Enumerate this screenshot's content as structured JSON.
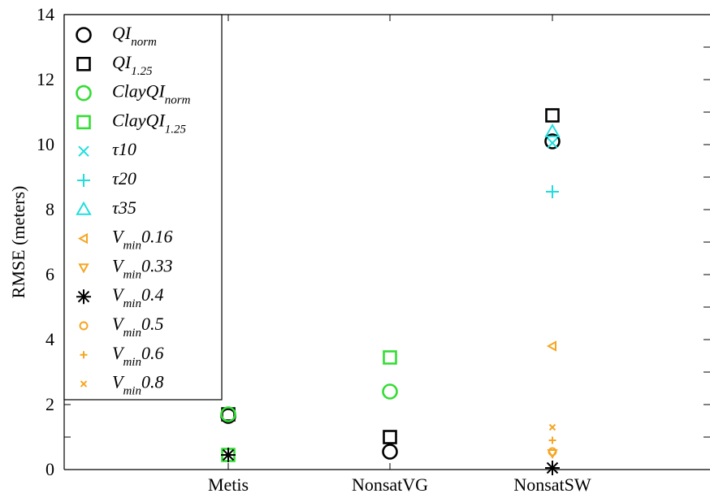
{
  "chart_data": {
    "type": "scatter",
    "ylabel": "RMSE (meters)",
    "xlabel": "",
    "title": "",
    "categories": [
      "Metis",
      "NonsatVG",
      "NonsatSW"
    ],
    "ylim": [
      0,
      14
    ],
    "yticks": [
      0,
      2,
      4,
      6,
      8,
      10,
      12,
      14
    ],
    "grid": false,
    "legend_position": "top-left",
    "series": [
      {
        "name": "QI_norm",
        "label_main": "QI",
        "label_sub": "norm",
        "label_tail": "",
        "marker": "circle-lg",
        "color": "#000000",
        "values": [
          1.65,
          0.55,
          10.1
        ]
      },
      {
        "name": "QI_1.25",
        "label_main": "QI",
        "label_sub": "1.25",
        "label_tail": "",
        "marker": "square-lg",
        "color": "#000000",
        "values": [
          1.7,
          1.0,
          10.9
        ]
      },
      {
        "name": "ClayQI_norm",
        "label_main": "ClayQI",
        "label_sub": "norm",
        "label_tail": "",
        "marker": "circle-lg",
        "color": "#33dd33",
        "values": [
          1.7,
          2.4,
          null
        ]
      },
      {
        "name": "ClayQI_1.25",
        "label_main": "ClayQI",
        "label_sub": "1.25",
        "label_tail": "",
        "marker": "square-lg",
        "color": "#33dd33",
        "values": [
          0.45,
          3.45,
          null
        ]
      },
      {
        "name": "τ10",
        "label_main": "τ10",
        "label_sub": "",
        "label_tail": "",
        "marker": "x",
        "color": "#22dddd",
        "values": [
          null,
          null,
          10.05
        ]
      },
      {
        "name": "τ20",
        "label_main": "τ20",
        "label_sub": "",
        "label_tail": "",
        "marker": "plus",
        "color": "#22dddd",
        "values": [
          null,
          null,
          8.55
        ]
      },
      {
        "name": "τ35",
        "label_main": "τ35",
        "label_sub": "",
        "label_tail": "",
        "marker": "triangle-up",
        "color": "#22dddd",
        "values": [
          null,
          null,
          10.4
        ]
      },
      {
        "name": "V_min 0.16",
        "label_main": "V",
        "label_sub": "min",
        "label_tail": "0.16",
        "marker": "triangle-left",
        "color": "#f5a623",
        "values": [
          null,
          null,
          3.8
        ]
      },
      {
        "name": "V_min 0.33",
        "label_main": "V",
        "label_sub": "min",
        "label_tail": "0.33",
        "marker": "triangle-down",
        "color": "#f5a623",
        "values": [
          null,
          null,
          0.5
        ]
      },
      {
        "name": "V_min 0.4",
        "label_main": "V",
        "label_sub": "min",
        "label_tail": "0.4",
        "marker": "asterisk",
        "color": "#000000",
        "values": [
          0.45,
          null,
          0.05
        ]
      },
      {
        "name": "V_min 0.5",
        "label_main": "V",
        "label_sub": "min",
        "label_tail": "0.5",
        "marker": "circle-sm",
        "color": "#f5a623",
        "values": [
          null,
          null,
          0.55
        ]
      },
      {
        "name": "V_min 0.6",
        "label_main": "V",
        "label_sub": "min",
        "label_tail": "0.6",
        "marker": "plus-sm",
        "color": "#f5a623",
        "values": [
          null,
          null,
          0.9
        ]
      },
      {
        "name": "V_min 0.8",
        "label_main": "V",
        "label_sub": "min",
        "label_tail": "0.8",
        "marker": "x-sm",
        "color": "#f5a623",
        "values": [
          null,
          null,
          1.3
        ]
      }
    ]
  }
}
